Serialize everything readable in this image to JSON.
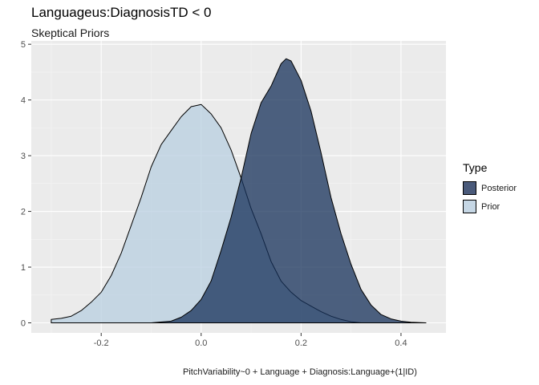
{
  "title": "Languageus:DiagnosisTD < 0",
  "subtitle": "Skeptical Priors",
  "caption": "PitchVariability~0 + Language + Diagnosis:Language+(1|ID)",
  "legend": {
    "title": "Type",
    "items": [
      {
        "label": "Posterior",
        "color": "#15305a"
      },
      {
        "label": "Prior",
        "color": "#b8cfe0"
      }
    ]
  },
  "chart_data": {
    "type": "area",
    "title": "Languageus:DiagnosisTD < 0",
    "subtitle": "Skeptical Priors",
    "xlabel": "",
    "ylabel": "",
    "xlim": [
      -0.34,
      0.49
    ],
    "ylim": [
      -0.18,
      5.06
    ],
    "xticks": [
      -0.2,
      0.0,
      0.2,
      0.4
    ],
    "xtick_labels": [
      "-0.2",
      "0.0",
      "0.2",
      "0.4"
    ],
    "yticks": [
      0,
      1,
      2,
      3,
      4,
      5
    ],
    "ytick_labels": [
      "0",
      "1",
      "2",
      "3",
      "4",
      "5"
    ],
    "grid": true,
    "legend_position": "right",
    "series": [
      {
        "name": "Prior",
        "color": "#b8cfe0",
        "x": [
          -0.3,
          -0.28,
          -0.26,
          -0.24,
          -0.22,
          -0.2,
          -0.18,
          -0.16,
          -0.14,
          -0.12,
          -0.1,
          -0.08,
          -0.06,
          -0.04,
          -0.02,
          0.0,
          0.02,
          0.04,
          0.06,
          0.08,
          0.1,
          0.12,
          0.14,
          0.16,
          0.18,
          0.2,
          0.22,
          0.24,
          0.26,
          0.28,
          0.3,
          0.32
        ],
        "y": [
          0.06,
          0.08,
          0.12,
          0.22,
          0.37,
          0.55,
          0.85,
          1.25,
          1.75,
          2.25,
          2.8,
          3.2,
          3.45,
          3.7,
          3.88,
          3.92,
          3.75,
          3.5,
          3.1,
          2.6,
          2.05,
          1.6,
          1.1,
          0.75,
          0.55,
          0.4,
          0.3,
          0.2,
          0.12,
          0.06,
          0.02,
          0.0
        ]
      },
      {
        "name": "Posterior",
        "color": "#15305a",
        "x": [
          -0.3,
          -0.1,
          -0.06,
          -0.04,
          -0.02,
          0.0,
          0.02,
          0.04,
          0.06,
          0.08,
          0.1,
          0.12,
          0.14,
          0.16,
          0.17,
          0.18,
          0.2,
          0.22,
          0.24,
          0.26,
          0.28,
          0.3,
          0.32,
          0.34,
          0.36,
          0.38,
          0.4,
          0.42,
          0.45
        ],
        "y": [
          0.0,
          0.0,
          0.03,
          0.1,
          0.22,
          0.42,
          0.75,
          1.3,
          1.9,
          2.6,
          3.4,
          3.95,
          4.25,
          4.65,
          4.74,
          4.7,
          4.35,
          3.8,
          3.05,
          2.25,
          1.6,
          1.05,
          0.6,
          0.32,
          0.15,
          0.07,
          0.03,
          0.01,
          0.0
        ]
      }
    ]
  }
}
